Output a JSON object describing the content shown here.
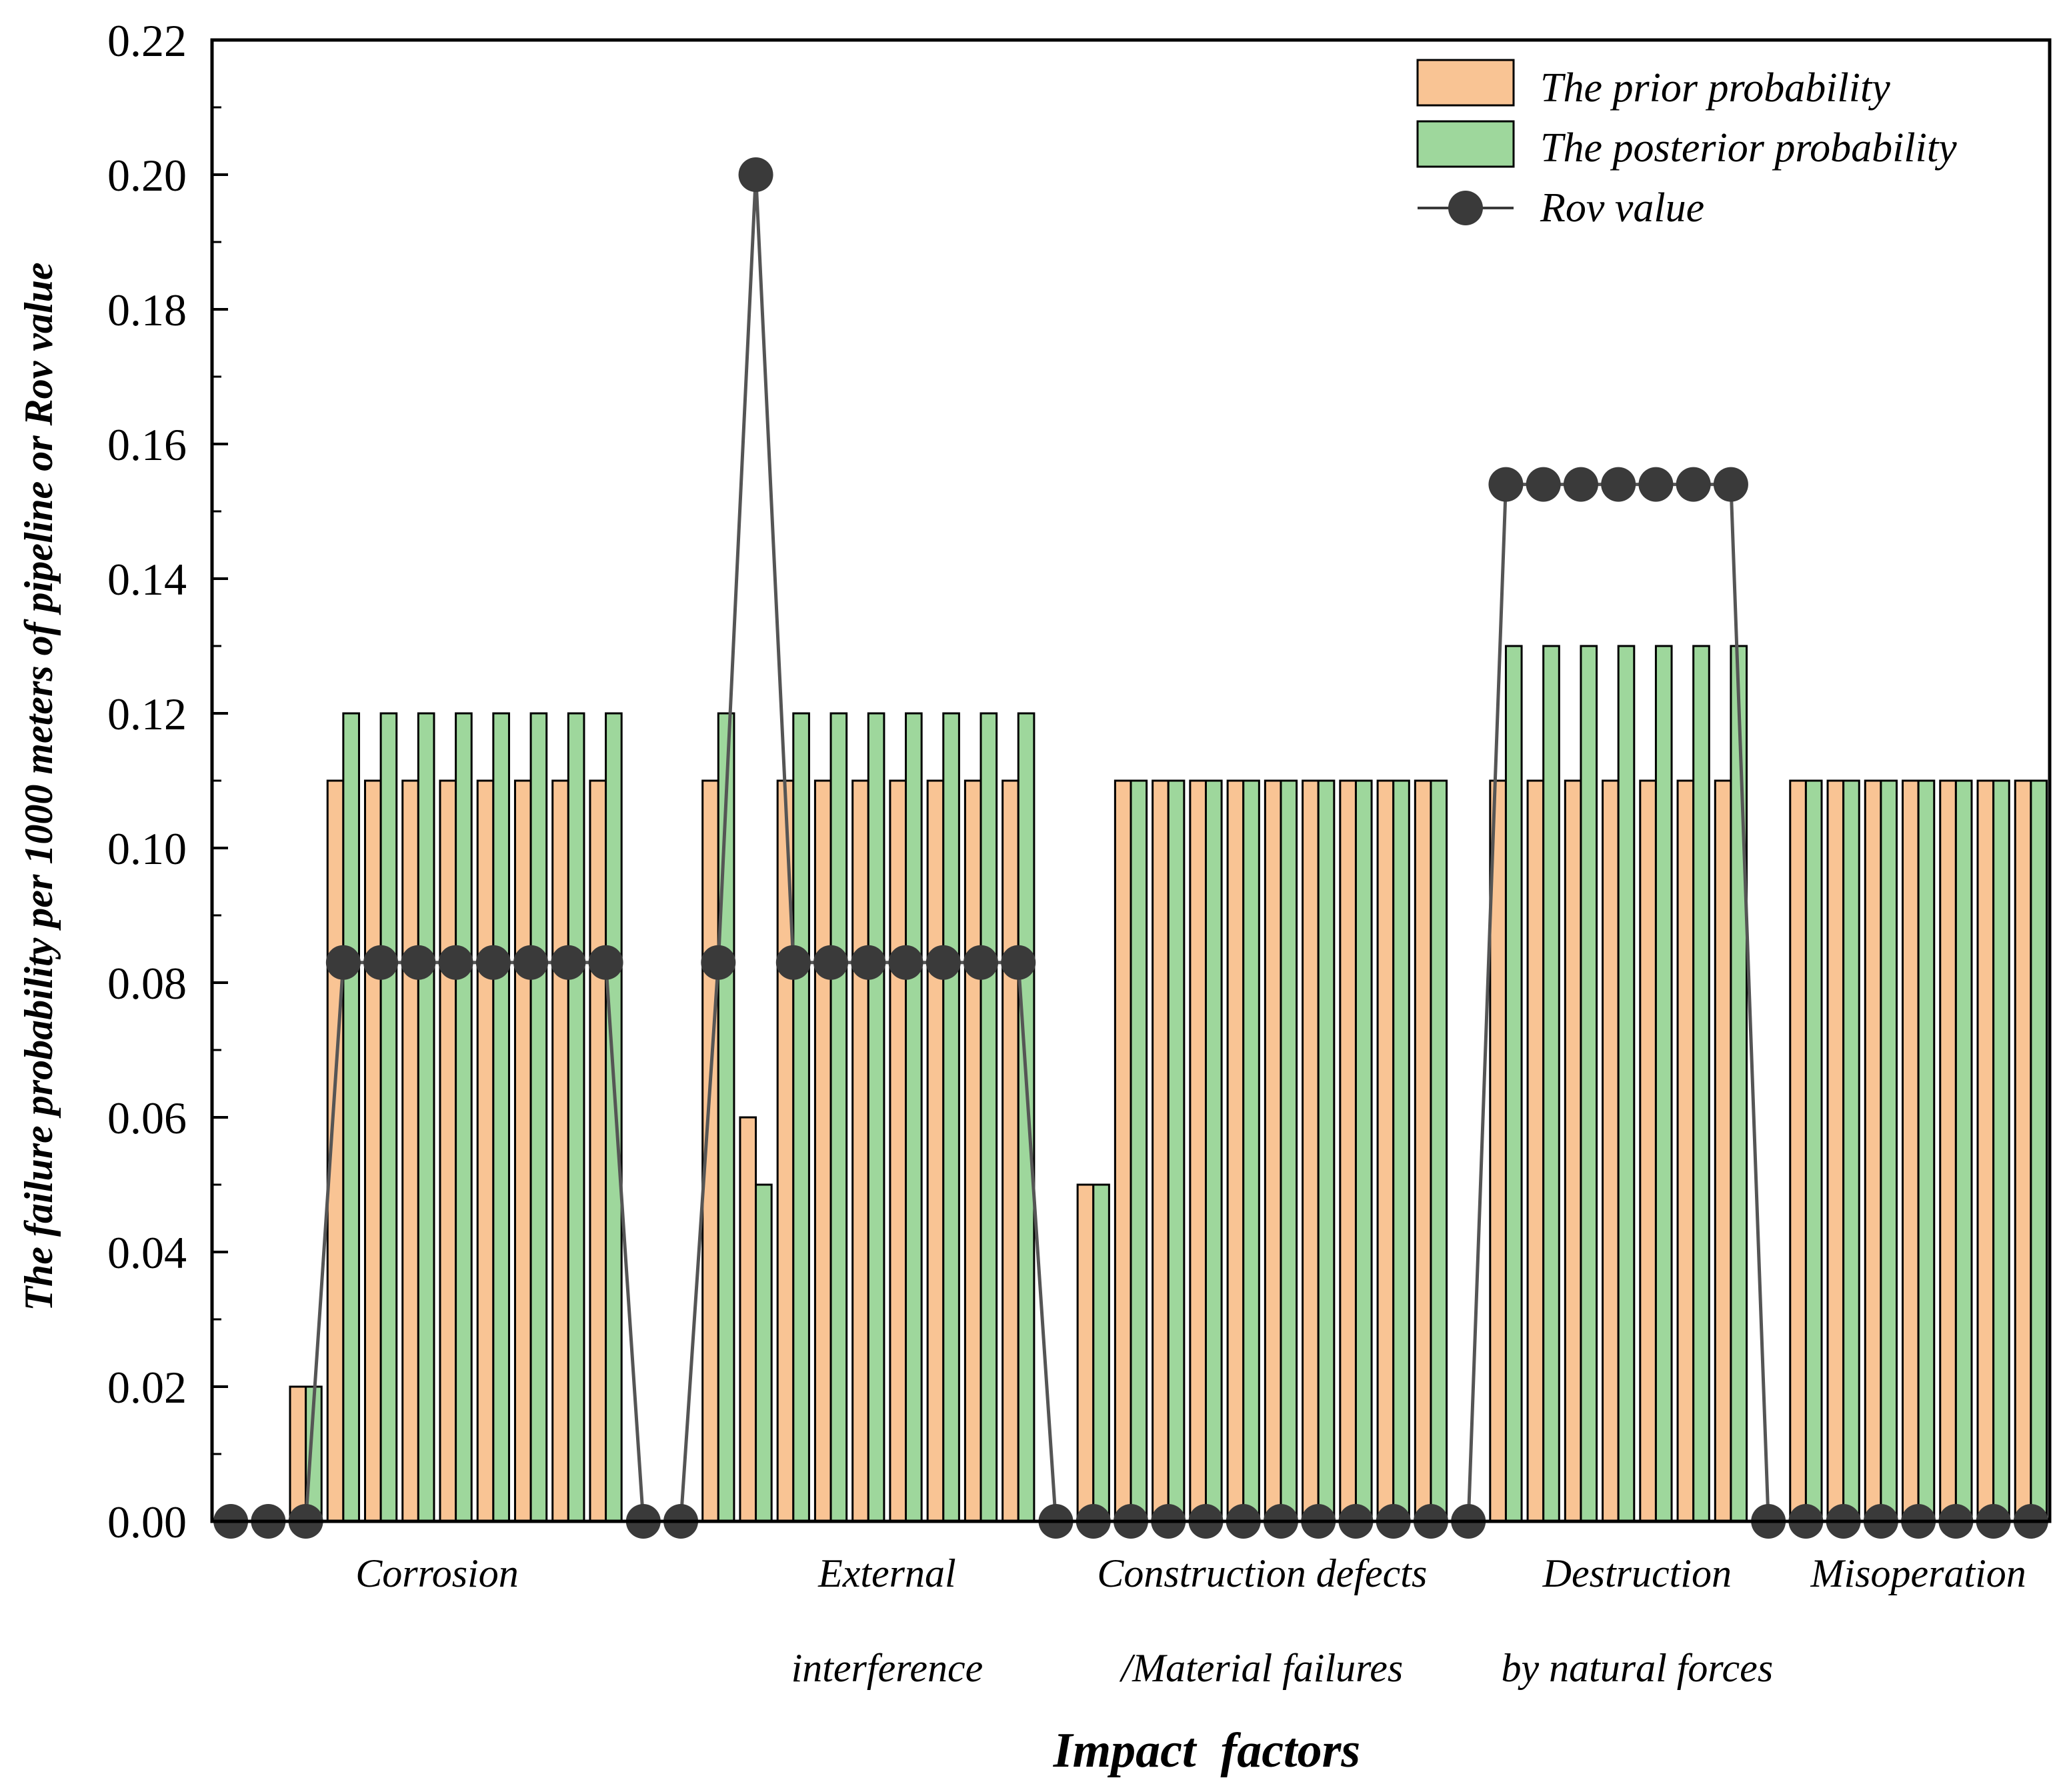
{
  "chart_data": {
    "type": "bar",
    "title": "",
    "xlabel": "Impact  factors",
    "ylabel": "The failure probability per 1000 meters of pipeline or Rov value",
    "ylim": [
      0,
      0.22
    ],
    "yticks": [
      "0.00",
      "0.02",
      "0.04",
      "0.06",
      "0.08",
      "0.10",
      "0.12",
      "0.14",
      "0.16",
      "0.18",
      "0.20",
      "0.22"
    ],
    "x_range": [
      0.5,
      49.5
    ],
    "categories": [
      {
        "label_lines": [
          "Corrosion"
        ],
        "center": 6.5
      },
      {
        "label_lines": [
          "External",
          "interference"
        ],
        "center": 18.5
      },
      {
        "label_lines": [
          "Construction defects",
          "/Material failures"
        ],
        "center": 28.5
      },
      {
        "label_lines": [
          "Destruction",
          "by natural forces"
        ],
        "center": 38.5
      },
      {
        "label_lines": [
          "Misoperation"
        ],
        "center": 46.0
      }
    ],
    "x": [
      1,
      2,
      3,
      4,
      5,
      6,
      7,
      8,
      9,
      10,
      11,
      12,
      13,
      14,
      15,
      16,
      17,
      18,
      19,
      20,
      21,
      22,
      23,
      24,
      25,
      26,
      27,
      28,
      29,
      30,
      31,
      32,
      33,
      34,
      35,
      36,
      37,
      38,
      39,
      40,
      41,
      42,
      43,
      44,
      45,
      46,
      47,
      48,
      49
    ],
    "series": [
      {
        "name": "The prior probability",
        "kind": "bar",
        "color": "#F9C494",
        "values": [
          0,
          0,
          0.02,
          0.11,
          0.11,
          0.11,
          0.11,
          0.11,
          0.11,
          0.11,
          0.11,
          0,
          0,
          0.11,
          0.06,
          0.11,
          0.11,
          0.11,
          0.11,
          0.11,
          0.11,
          0.11,
          0,
          0.05,
          0.11,
          0.11,
          0.11,
          0.11,
          0.11,
          0.11,
          0.11,
          0.11,
          0.11,
          0,
          0.11,
          0.11,
          0.11,
          0.11,
          0.11,
          0.11,
          0.11,
          0,
          0.11,
          0.11,
          0.11,
          0.11,
          0.11,
          0.11,
          0.11
        ]
      },
      {
        "name": "The posterior probability",
        "kind": "bar",
        "color": "#9ED79C",
        "values": [
          0,
          0,
          0.02,
          0.12,
          0.12,
          0.12,
          0.12,
          0.12,
          0.12,
          0.12,
          0.12,
          0,
          0,
          0.12,
          0.05,
          0.12,
          0.12,
          0.12,
          0.12,
          0.12,
          0.12,
          0.12,
          0,
          0.05,
          0.11,
          0.11,
          0.11,
          0.11,
          0.11,
          0.11,
          0.11,
          0.11,
          0.11,
          0,
          0.13,
          0.13,
          0.13,
          0.13,
          0.13,
          0.13,
          0.13,
          0,
          0.11,
          0.11,
          0.11,
          0.11,
          0.11,
          0.11,
          0.11
        ]
      },
      {
        "name": "Rov value",
        "kind": "line",
        "color": "#3A3A3A",
        "values": [
          0,
          0,
          0,
          0.083,
          0.083,
          0.083,
          0.083,
          0.083,
          0.083,
          0.083,
          0.083,
          0,
          0,
          0.083,
          0.2,
          0.083,
          0.083,
          0.083,
          0.083,
          0.083,
          0.083,
          0.083,
          0,
          0,
          0,
          0,
          0,
          0,
          0,
          0,
          0,
          0,
          0,
          0,
          0.154,
          0.154,
          0.154,
          0.154,
          0.154,
          0.154,
          0.154,
          0,
          0,
          0,
          0,
          0,
          0,
          0,
          0
        ]
      }
    ],
    "legend": {
      "position": "top-right"
    }
  }
}
